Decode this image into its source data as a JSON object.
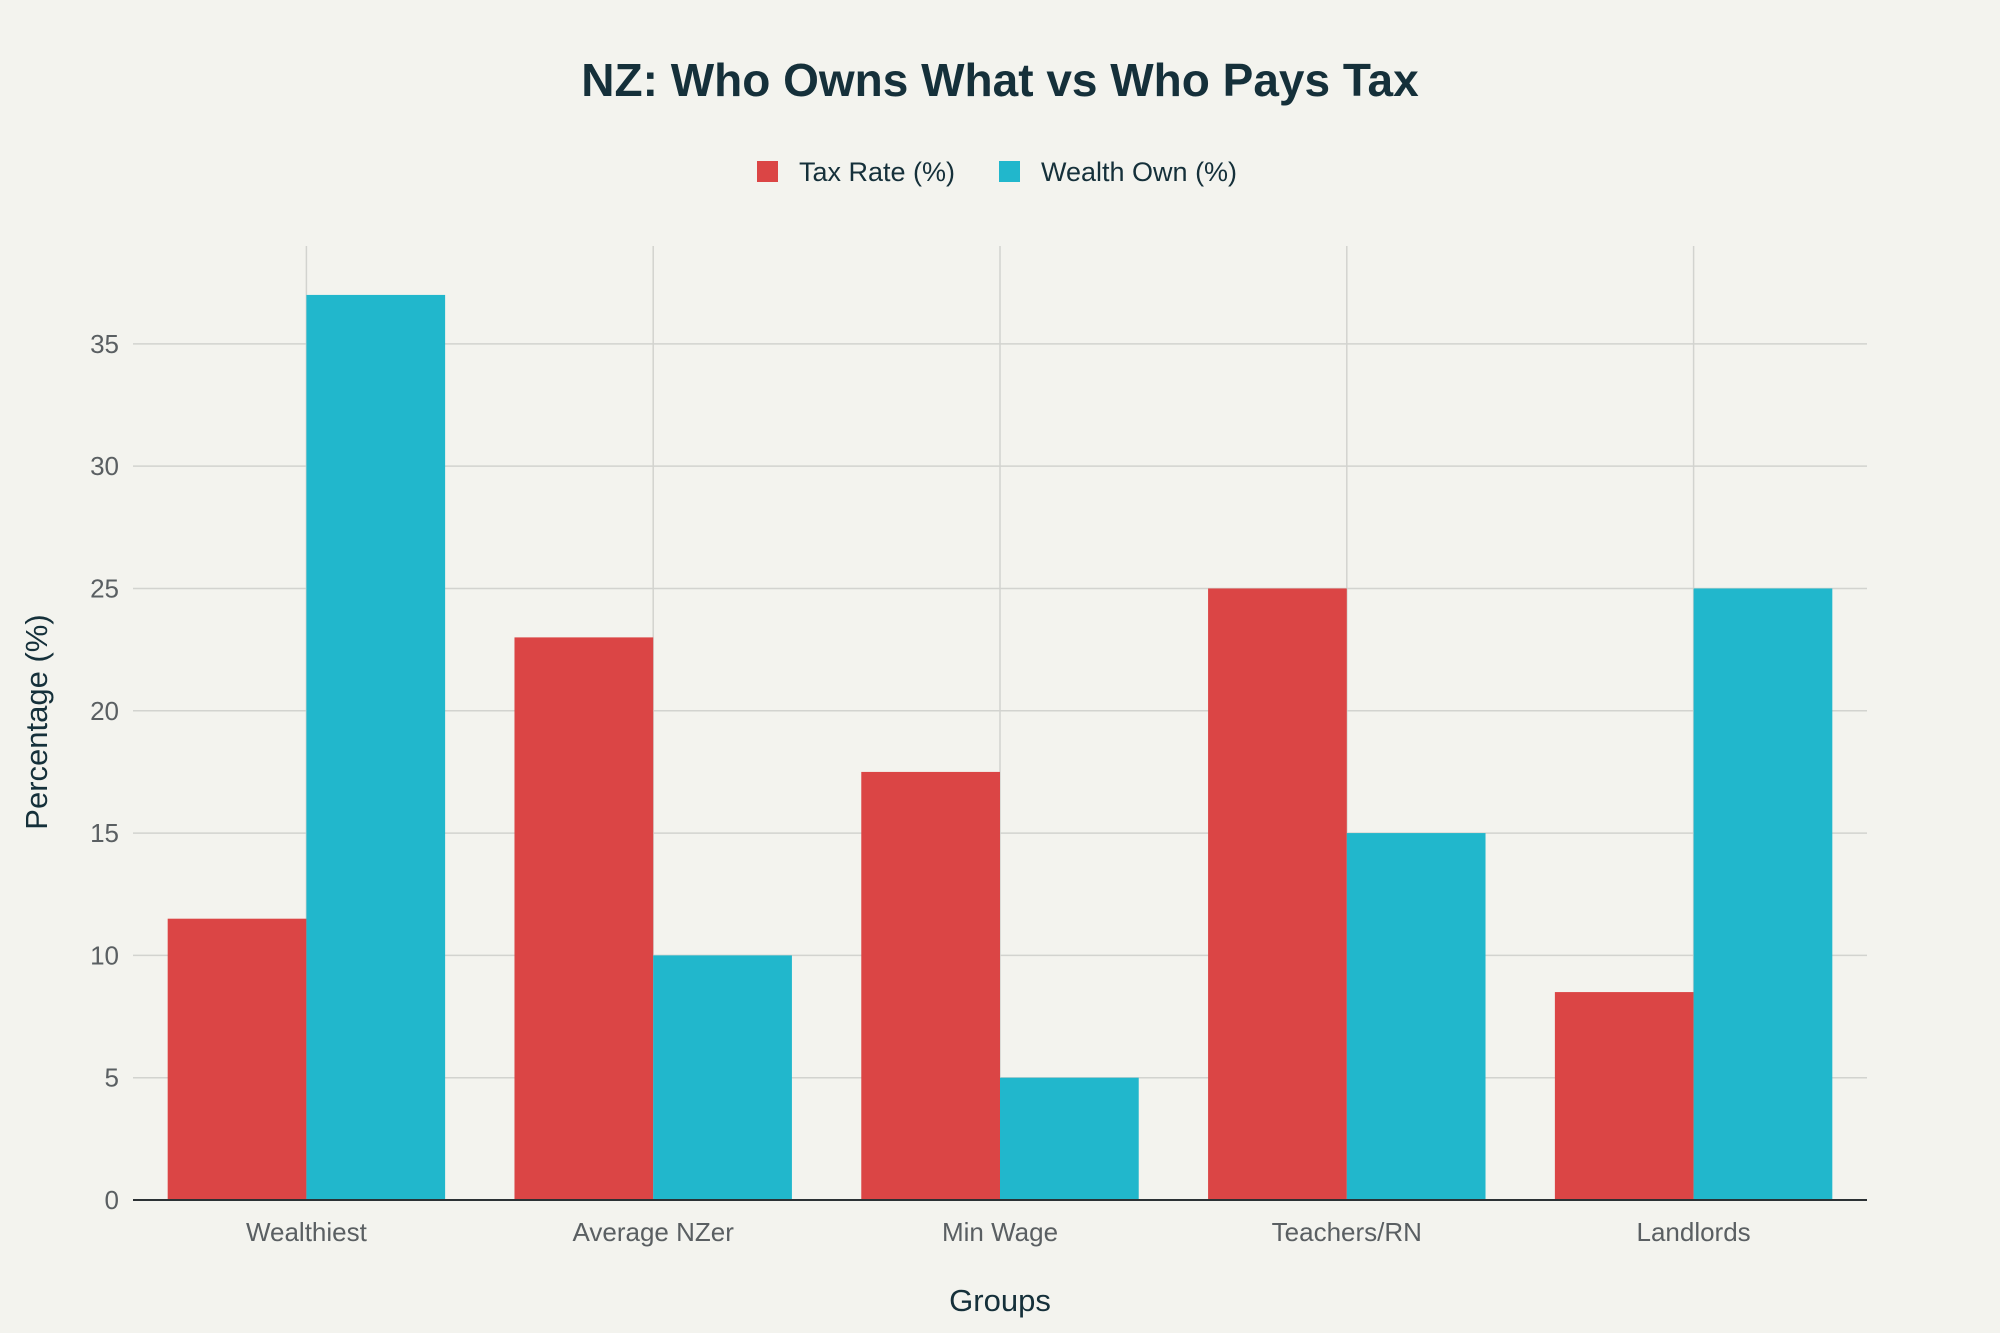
{
  "chart_data": {
    "type": "bar",
    "title": "NZ: Who Owns What vs Who Pays Tax",
    "xlabel": "Groups",
    "ylabel": "Percentage (%)",
    "categories": [
      "Wealthiest",
      "Average NZer",
      "Min Wage",
      "Teachers/RN",
      "Landlords"
    ],
    "series": [
      {
        "name": "Tax Rate (%)",
        "color": "#db4545",
        "values": [
          11.5,
          23,
          17.5,
          25,
          8.5
        ]
      },
      {
        "name": "Wealth Own (%)",
        "color": "#21b7cc",
        "values": [
          37,
          10,
          5,
          15,
          25
        ]
      }
    ],
    "ylim": [
      0,
      39
    ],
    "yticks": [
      0,
      5,
      10,
      15,
      20,
      25,
      30,
      35
    ],
    "grid": true,
    "legend_position": "top-center",
    "background": "#f3f3ee"
  }
}
